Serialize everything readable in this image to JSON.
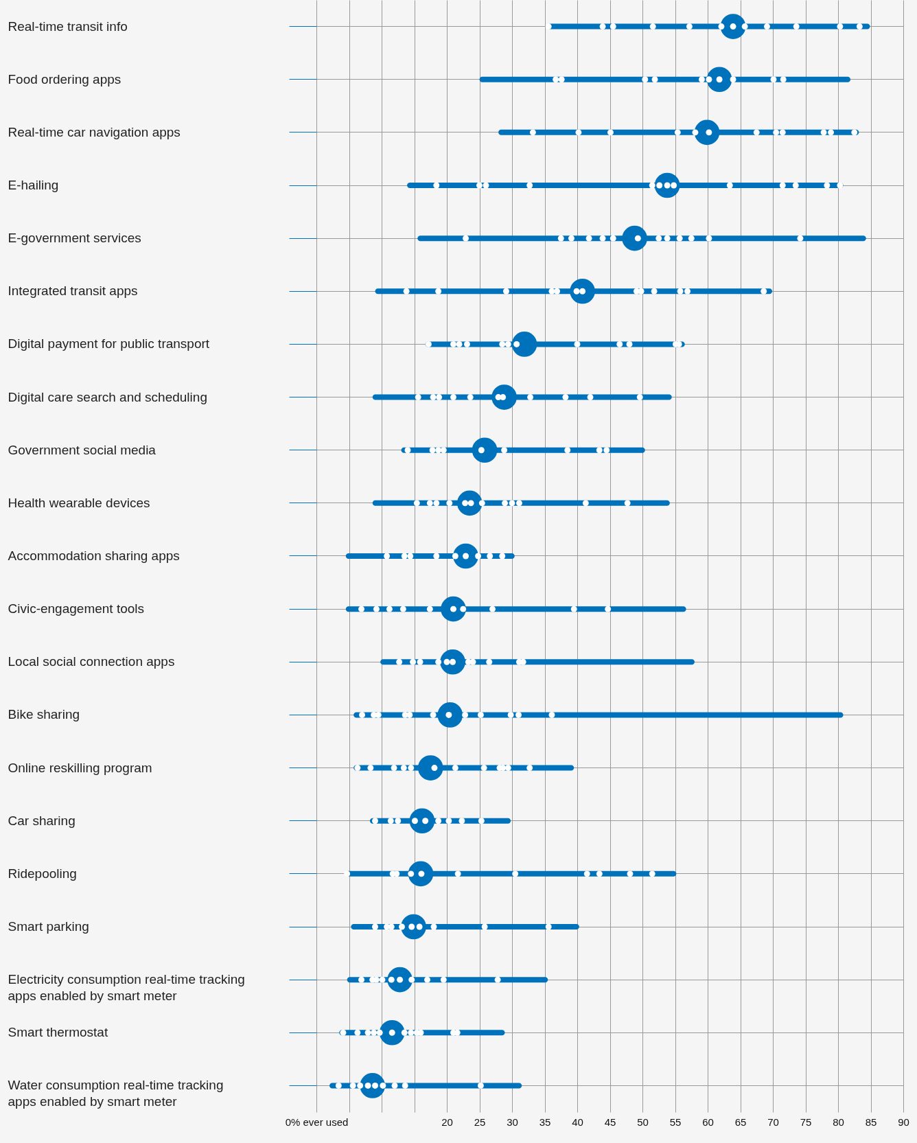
{
  "chart_data": {
    "type": "bar",
    "orientation": "horizontal",
    "grid": true,
    "marker": "circle",
    "categories": [
      "Real-time transit info",
      "Food ordering apps",
      "Real-time car navigation apps",
      "E-hailing",
      "E-government services",
      "Integrated transit apps",
      "Digital payment for public transport",
      "Digital care search and scheduling",
      "Government social media",
      "Health wearable devices",
      "Accommodation sharing apps",
      "Civic-engagement tools",
      "Local social connection apps",
      "Bike sharing",
      "Online reskilling program",
      "Car sharing",
      "Ridepooling",
      "Smart parking",
      "Electricity consumption real-time tracking\napps enabled by smart meter",
      "Smart thermostat",
      "Water consumption real-time tracking\napps enabled by smart meter"
    ],
    "xlim": [
      0,
      90
    ],
    "xticks": [
      {
        "value": 0,
        "label": "0% ever used"
      },
      {
        "value": 5,
        "label": null
      },
      {
        "value": 10,
        "label": null
      },
      {
        "value": 15,
        "label": null
      },
      20,
      25,
      30,
      35,
      40,
      45,
      50,
      55,
      60,
      65,
      70,
      75,
      80,
      85,
      90
    ],
    "series": [
      {
        "color": "#0072bc",
        "base": [
          35.2,
          25.0,
          27.9,
          13.9,
          15.5,
          9.0,
          16.7,
          8.6,
          13.0,
          8.6,
          4.5,
          4.5,
          9.8,
          5.7,
          5.7,
          8.2,
          4.4,
          5.3,
          4.7,
          3.5,
          2.0
        ],
        "values": [
          49.7,
          56.9,
          55.3,
          66.9,
          68.8,
          60.9,
          39.8,
          45.9,
          37.4,
          45.6,
          25.9,
          52.2,
          48.2,
          75.1,
          33.8,
          21.6,
          50.8,
          35.0,
          30.8,
          25.4,
          29.5
        ]
      },
      {
        "type": "bubble",
        "color": "#0072bc",
        "values": [
          63.9,
          61.8,
          59.9,
          53.8,
          48.8,
          40.8,
          31.9,
          28.8,
          25.8,
          23.5,
          22.9,
          21.0,
          20.9,
          20.5,
          17.5,
          16.2,
          16.0,
          14.9,
          12.8,
          11.6,
          8.6
        ],
        "sizes": [
          1,
          1,
          1,
          1,
          1,
          1,
          1,
          1,
          1,
          1,
          1,
          1,
          1,
          1,
          1,
          1,
          1,
          1,
          1,
          1,
          1
        ]
      },
      {
        "type": "scatter",
        "color": "#ffffff",
        "x": [
          "Real-time transit info",
          "Real-time transit info",
          "Real-time transit info",
          "Real-time transit info",
          "Real-time transit info",
          "Real-time transit info",
          "Real-time transit info",
          "Real-time transit info",
          "Real-time transit info",
          "Real-time transit info",
          "Real-time transit info",
          "Real-time transit info",
          "Food ordering apps",
          "Food ordering apps",
          "Food ordering apps",
          "Food ordering apps",
          "Food ordering apps",
          "Food ordering apps",
          "Food ordering apps",
          "Food ordering apps",
          "Food ordering apps",
          "Food ordering apps",
          "Real-time car navigation apps",
          "Real-time car navigation apps",
          "Real-time car navigation apps",
          "Real-time car navigation apps",
          "Real-time car navigation apps",
          "Real-time car navigation apps",
          "Real-time car navigation apps",
          "Real-time car navigation apps",
          "Real-time car navigation apps",
          "Real-time car navigation apps",
          "Real-time car navigation apps",
          "Real-time car navigation apps",
          "E-hailing",
          "E-hailing",
          "E-hailing",
          "E-hailing",
          "E-hailing",
          "E-hailing",
          "E-hailing",
          "E-hailing",
          "E-hailing",
          "E-hailing",
          "E-hailing",
          "E-hailing",
          "E-hailing",
          "E-government services",
          "E-government services",
          "E-government services",
          "E-government services",
          "E-government services",
          "E-government services",
          "E-government services",
          "E-government services",
          "E-government services",
          "E-government services",
          "E-government services",
          "E-government services",
          "E-government services",
          "Integrated transit apps",
          "Integrated transit apps",
          "Integrated transit apps",
          "Integrated transit apps",
          "Integrated transit apps",
          "Integrated transit apps",
          "Integrated transit apps",
          "Integrated transit apps",
          "Integrated transit apps",
          "Integrated transit apps",
          "Integrated transit apps",
          "Integrated transit apps",
          "Integrated transit apps",
          "Digital payment for public transport",
          "Digital payment for public transport",
          "Digital payment for public transport",
          "Digital payment for public transport",
          "Digital payment for public transport",
          "Digital payment for public transport",
          "Digital payment for public transport",
          "Digital payment for public transport",
          "Digital payment for public transport",
          "Digital payment for public transport",
          "Digital payment for public transport",
          "Digital payment for public transport",
          "Digital care search and scheduling",
          "Digital care search and scheduling",
          "Digital care search and scheduling",
          "Digital care search and scheduling",
          "Digital care search and scheduling",
          "Digital care search and scheduling",
          "Digital care search and scheduling",
          "Digital care search and scheduling",
          "Digital care search and scheduling",
          "Digital care search and scheduling",
          "Digital care search and scheduling",
          "Government social media",
          "Government social media",
          "Government social media",
          "Government social media",
          "Government social media",
          "Government social media",
          "Government social media",
          "Government social media",
          "Government social media",
          "Health wearable devices",
          "Health wearable devices",
          "Health wearable devices",
          "Health wearable devices",
          "Health wearable devices",
          "Health wearable devices",
          "Health wearable devices",
          "Health wearable devices",
          "Health wearable devices",
          "Health wearable devices",
          "Health wearable devices",
          "Health wearable devices",
          "Accommodation sharing apps",
          "Accommodation sharing apps",
          "Accommodation sharing apps",
          "Accommodation sharing apps",
          "Accommodation sharing apps",
          "Accommodation sharing apps",
          "Accommodation sharing apps",
          "Accommodation sharing apps",
          "Accommodation sharing apps",
          "Civic-engagement tools",
          "Civic-engagement tools",
          "Civic-engagement tools",
          "Civic-engagement tools",
          "Civic-engagement tools",
          "Civic-engagement tools",
          "Civic-engagement tools",
          "Civic-engagement tools",
          "Civic-engagement tools",
          "Civic-engagement tools",
          "Local social connection apps",
          "Local social connection apps",
          "Local social connection apps",
          "Local social connection apps",
          "Local social connection apps",
          "Local social connection apps",
          "Local social connection apps",
          "Local social connection apps",
          "Local social connection apps",
          "Local social connection apps",
          "Local social connection apps",
          "Bike sharing",
          "Bike sharing",
          "Bike sharing",
          "Bike sharing",
          "Bike sharing",
          "Bike sharing",
          "Bike sharing",
          "Bike sharing",
          "Bike sharing",
          "Bike sharing",
          "Bike sharing",
          "Bike sharing",
          "Online reskilling program",
          "Online reskilling program",
          "Online reskilling program",
          "Online reskilling program",
          "Online reskilling program",
          "Online reskilling program",
          "Online reskilling program",
          "Online reskilling program",
          "Online reskilling program",
          "Online reskilling program",
          "Online reskilling program",
          "Online reskilling program",
          "Car sharing",
          "Car sharing",
          "Car sharing",
          "Car sharing",
          "Car sharing",
          "Car sharing",
          "Car sharing",
          "Car sharing",
          "Car sharing",
          "Ridepooling",
          "Ridepooling",
          "Ridepooling",
          "Ridepooling",
          "Ridepooling",
          "Ridepooling",
          "Ridepooling",
          "Ridepooling",
          "Ridepooling",
          "Ridepooling",
          "Ridepooling",
          "Smart parking",
          "Smart parking",
          "Smart parking",
          "Smart parking",
          "Smart parking",
          "Smart parking",
          "Smart parking",
          "Smart parking",
          "Smart parking",
          "Electricity consumption real-time tracking\napps enabled by smart meter",
          "Electricity consumption real-time tracking\napps enabled by smart meter",
          "Electricity consumption real-time tracking\napps enabled by smart meter",
          "Electricity consumption real-time tracking\napps enabled by smart meter",
          "Electricity consumption real-time tracking\napps enabled by smart meter",
          "Electricity consumption real-time tracking\napps enabled by smart meter",
          "Electricity consumption real-time tracking\napps enabled by smart meter",
          "Electricity consumption real-time tracking\napps enabled by smart meter",
          "Electricity consumption real-time tracking\napps enabled by smart meter",
          "Electricity consumption real-time tracking\napps enabled by smart meter",
          "Smart thermostat",
          "Smart thermostat",
          "Smart thermostat",
          "Smart thermostat",
          "Smart thermostat",
          "Smart thermostat",
          "Smart thermostat",
          "Smart thermostat",
          "Smart thermostat",
          "Smart thermostat",
          "Smart thermostat",
          "Smart thermostat",
          "Water consumption real-time tracking\napps enabled by smart meter",
          "Water consumption real-time tracking\napps enabled by smart meter",
          "Water consumption real-time tracking\napps enabled by smart meter",
          "Water consumption real-time tracking\napps enabled by smart meter",
          "Water consumption real-time tracking\napps enabled by smart meter",
          "Water consumption real-time tracking\napps enabled by smart meter",
          "Water consumption real-time tracking\napps enabled by smart meter",
          "Water consumption real-time tracking\napps enabled by smart meter",
          "Water consumption real-time tracking\napps enabled by smart meter"
        ],
        "values": [
          35.6,
          43.9,
          45.5,
          51.6,
          57.2,
          62.1,
          63.9,
          65.7,
          69.1,
          73.6,
          80.3,
          83.3,
          36.7,
          37.6,
          50.4,
          51.9,
          59.1,
          60.2,
          61.8,
          63.9,
          70.1,
          71.6,
          33.2,
          40.2,
          45.1,
          55.4,
          58.1,
          60.2,
          67.5,
          70.5,
          71.5,
          77.8,
          78.9,
          82.5,
          18.4,
          25.0,
          26.0,
          32.7,
          51.5,
          52.6,
          53.8,
          54.8,
          63.4,
          71.5,
          73.5,
          78.3,
          80.3,
          22.9,
          37.5,
          39.1,
          41.8,
          43.9,
          45.5,
          49.3,
          52.5,
          53.8,
          55.7,
          57.5,
          60.2,
          74.2,
          13.8,
          18.7,
          29.1,
          36.1,
          36.9,
          39.9,
          40.8,
          49.1,
          49.8,
          51.8,
          55.8,
          56.9,
          68.6,
          17.2,
          21.0,
          21.9,
          23.1,
          28.5,
          29.4,
          30.7,
          40.0,
          46.5,
          48.0,
          55.1,
          55.6,
          15.6,
          17.9,
          18.8,
          21.0,
          23.6,
          27.9,
          28.6,
          32.8,
          38.2,
          42.0,
          49.6,
          14.0,
          17.8,
          18.7,
          19.5,
          25.3,
          28.8,
          38.5,
          43.4,
          44.5,
          15.4,
          17.4,
          18.4,
          20.4,
          22.8,
          23.7,
          25.4,
          28.9,
          30.0,
          31.1,
          41.3,
          47.7,
          10.8,
          13.5,
          14.4,
          18.4,
          21.3,
          22.9,
          24.8,
          26.6,
          28.5,
          6.9,
          9.2,
          11.2,
          13.3,
          17.4,
          21.0,
          22.5,
          27.0,
          39.5,
          44.7,
          12.7,
          14.8,
          15.9,
          18.7,
          20.0,
          20.9,
          23.3,
          24.0,
          26.5,
          31.1,
          31.7,
          7.0,
          8.8,
          9.5,
          13.6,
          14.3,
          17.9,
          20.3,
          22.8,
          25.2,
          29.8,
          31.0,
          36.1,
          6.3,
          8.3,
          11.9,
          13.4,
          14.5,
          18.1,
          21.3,
          25.7,
          28.1,
          28.6,
          29.4,
          32.7,
          9.0,
          11.4,
          12.5,
          15.1,
          16.7,
          18.7,
          20.3,
          22.3,
          25.3,
          4.7,
          11.7,
          12.3,
          14.5,
          16.1,
          21.7,
          30.5,
          41.5,
          43.4,
          48.1,
          51.5,
          9.0,
          10.8,
          11.5,
          13.1,
          14.6,
          15.8,
          18.0,
          25.8,
          35.6,
          6.9,
          8.6,
          9.2,
          10.1,
          11.5,
          12.8,
          14.6,
          17.0,
          19.5,
          27.8,
          4.1,
          6.3,
          7.9,
          8.8,
          9.7,
          11.6,
          13.5,
          14.5,
          15.4,
          16.0,
          21.0,
          21.6,
          3.4,
          5.6,
          6.7,
          7.9,
          9.0,
          10.2,
          12.0,
          13.6,
          25.2
        ]
      }
    ]
  }
}
